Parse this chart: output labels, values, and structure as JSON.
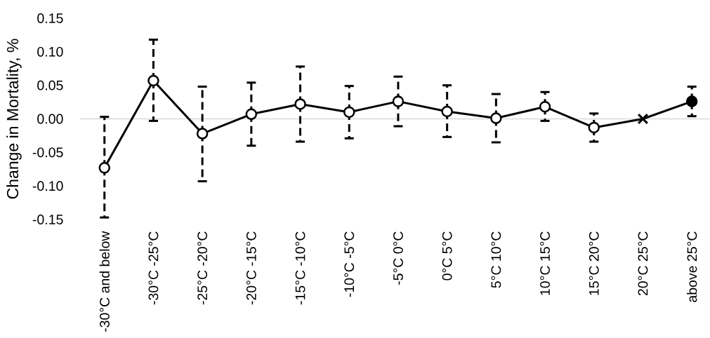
{
  "chart_data": {
    "type": "line",
    "ylabel": "Change in Mortality, %",
    "categories": [
      "-30°C and below",
      "-30°C -25°C",
      "-25°C -20°C",
      "-20°C -15°C",
      "-15°C -10°C",
      "-10°C -5°C",
      "-5°C 0°C",
      "0°C 5°C",
      "5°C 10°C",
      "10°C 15°C",
      "15°C 20°C",
      "20°C 25°C",
      "above 25°C"
    ],
    "ylim": [
      -0.15,
      0.15
    ],
    "yticks": [
      -0.15,
      {
        "value": -0.1,
        "label": "-0.10"
      },
      -0.05,
      {
        "value": 0,
        "label": "0.00"
      },
      0.05,
      {
        "value": 0.1,
        "label": "0.10"
      },
      0.15
    ],
    "ref_lines": [
      {
        "axis": "y",
        "value": 0,
        "color": "#d9d9d9"
      }
    ],
    "series": [
      {
        "type": "line",
        "color": "#000000",
        "marker": "none",
        "values": [
          -0.073,
          0.057,
          -0.022,
          0.007,
          0.022,
          0.01,
          0.026,
          0.011,
          0.001,
          0.018,
          -0.013,
          0,
          0.026
        ]
      },
      {
        "type": "scatter",
        "color": "#ffffff",
        "marker": "circle",
        "values": [
          -0.073,
          0.057,
          -0.022,
          0.007,
          0.022,
          0.01,
          0.026,
          0.011,
          0.001,
          0.018,
          -0.013,
          null,
          null
        ],
        "errors": [
          [
            -0.147,
            0.003
          ],
          [
            -0.003,
            0.118
          ],
          [
            -0.093,
            0.048
          ],
          [
            -0.04,
            0.054
          ],
          [
            -0.034,
            0.078
          ],
          [
            -0.029,
            0.049
          ],
          [
            -0.011,
            0.063
          ],
          [
            -0.027,
            0.05
          ],
          [
            -0.035,
            0.037
          ],
          [
            -0.003,
            0.04
          ],
          [
            -0.034,
            0.008
          ],
          null,
          null
        ]
      },
      {
        "type": "scatter",
        "color": "#000000",
        "marker": "cross",
        "values": [
          null,
          null,
          null,
          null,
          null,
          null,
          null,
          null,
          null,
          null,
          null,
          0,
          null
        ]
      },
      {
        "type": "scatter",
        "color": "#000000",
        "marker": "circle",
        "values": [
          null,
          null,
          null,
          null,
          null,
          null,
          null,
          null,
          null,
          null,
          null,
          null,
          0.026
        ],
        "errors": [
          null,
          null,
          null,
          null,
          null,
          null,
          null,
          null,
          null,
          null,
          null,
          null,
          [
            0.004,
            0.048
          ]
        ]
      }
    ]
  }
}
